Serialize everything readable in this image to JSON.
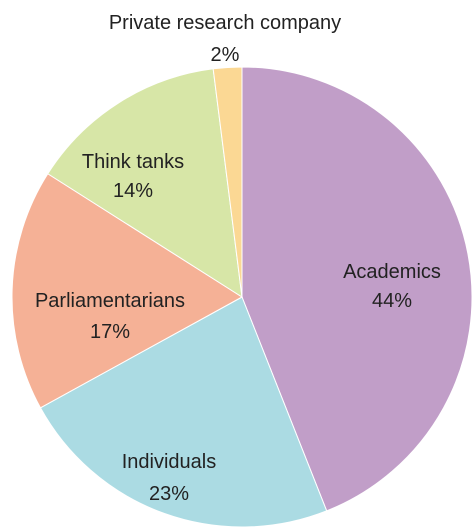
{
  "chart_data": {
    "type": "pie",
    "start_angle_deg": 0,
    "direction": "clockwise",
    "legend": "none",
    "slices": [
      {
        "label": "Academics",
        "value": 44,
        "value_label": "44%",
        "color": "#c19ec8"
      },
      {
        "label": "Individuals",
        "value": 23,
        "value_label": "23%",
        "color": "#abdbe3"
      },
      {
        "label": "Parliamentarians",
        "value": 17,
        "value_label": "17%",
        "color": "#f5b196"
      },
      {
        "label": "Think tanks",
        "value": 14,
        "value_label": "14%",
        "color": "#d7e6a7"
      },
      {
        "label": "Private research company",
        "value": 2,
        "value_label": "2%",
        "color": "#fbd894"
      }
    ]
  }
}
